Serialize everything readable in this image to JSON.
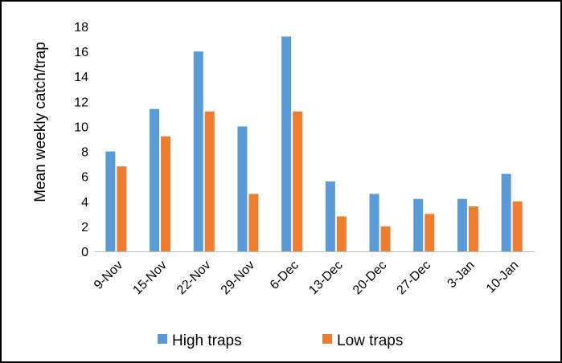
{
  "chart_data": {
    "type": "bar",
    "title": "",
    "xlabel": "",
    "ylabel": "Mean weekly catch/trap",
    "ylim": [
      0,
      18
    ],
    "yticks": [
      0,
      2,
      4,
      6,
      8,
      10,
      12,
      14,
      16,
      18
    ],
    "grid": false,
    "legend_position": "bottom",
    "categories": [
      "9-Nov",
      "15-Nov",
      "22-Nov",
      "29-Nov",
      "6-Dec",
      "13-Dec",
      "20-Dec",
      "27-Dec",
      "3-Jan",
      "10-Jan"
    ],
    "series": [
      {
        "name": "High traps",
        "color": "#5B9BD5",
        "values": [
          8.0,
          11.4,
          16.0,
          10.0,
          17.2,
          5.6,
          4.6,
          4.2,
          4.2,
          6.2
        ]
      },
      {
        "name": "Low traps",
        "color": "#ED7D31",
        "values": [
          6.8,
          9.2,
          11.2,
          4.6,
          11.2,
          2.8,
          2.0,
          3.0,
          3.6,
          4.0
        ]
      }
    ]
  }
}
